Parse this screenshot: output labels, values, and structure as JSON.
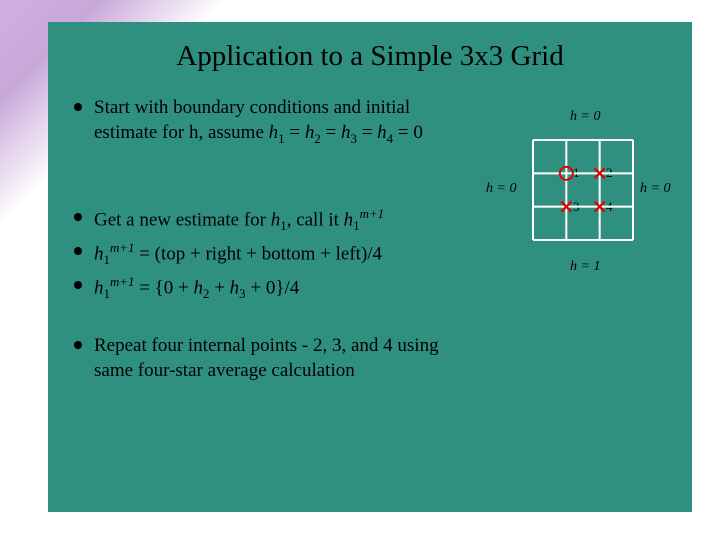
{
  "title": "Application to a Simple 3x3 Grid",
  "bullets": {
    "b1_a": "Start with boundary conditions and initial estimate for h, assume ",
    "b1_b": "h",
    "b1_c": " = ",
    "b1_d": "h",
    "b1_e": " = ",
    "b1_f": "h",
    "b1_g": " = ",
    "b1_h": "h",
    "b1_i": " = 0",
    "b2_a": "Get a new estimate for ",
    "b2_b": "h",
    "b2_c": ", call it ",
    "b2_d": "h",
    "b3_a": "h",
    "b3_b": " = (top + right + bottom + left)/4",
    "b4_a": "h",
    "b4_b": " = {0    +   ",
    "b4_c": "h",
    "b4_d": "  +   ",
    "b4_e": "h",
    "b4_f": "      + 0}/4",
    "b5": "Repeat four internal points - 2, 3, and 4 using same four-star average calculation"
  },
  "subs": {
    "s1": "1",
    "s2": "2",
    "s3": "3",
    "s4": "4",
    "sm1": "m+1"
  },
  "labels": {
    "h0": "h = 0",
    "h1": "h = 1"
  },
  "points": {
    "p1": "1",
    "p2": "2",
    "p3": "3",
    "p4": "4"
  },
  "grid": {
    "size": 100,
    "step": 33.33,
    "line_color": "#ffffff",
    "line_width": 2,
    "circle_r": 6.5,
    "circle_stroke": "#e00000",
    "circle_stroke_w": 2,
    "cross_stroke": "#e00000",
    "cross_w": 2.2,
    "cross_half": 5,
    "bg": "#309080"
  }
}
